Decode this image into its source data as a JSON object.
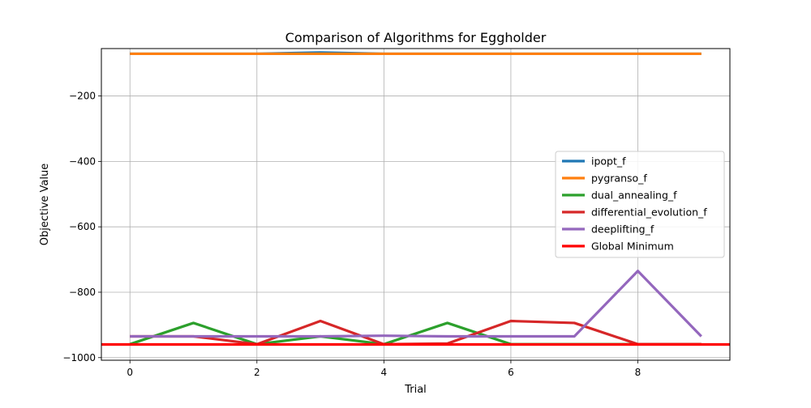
{
  "chart_data": {
    "type": "line",
    "title": "Comparison of Algorithms for Eggholder",
    "xlabel": "Trial",
    "ylabel": "Objective Value",
    "xlim": [
      -0.45,
      9.45
    ],
    "ylim": [
      -1008,
      -55
    ],
    "x_ticks": [
      0,
      2,
      4,
      6,
      8
    ],
    "x_tick_labels": [
      "0",
      "2",
      "4",
      "6",
      "8"
    ],
    "y_ticks": [
      -1000,
      -800,
      -600,
      -400,
      -200
    ],
    "y_tick_labels": [
      "−1000",
      "−800",
      "−600",
      "−400",
      "−200"
    ],
    "grid": true,
    "legend_position": "center-right",
    "x": [
      0,
      1,
      2,
      3,
      4,
      5,
      6,
      7,
      8,
      9
    ],
    "series": [
      {
        "name": "ipopt_f",
        "color": "#1f77b4",
        "values": [
          -71,
          -71,
          -71,
          -67,
          -71,
          -71,
          -71,
          -71,
          -71,
          -71
        ]
      },
      {
        "name": "pygranso_f",
        "color": "#ff7f0e",
        "values": [
          -71,
          -71,
          -71,
          -71,
          -71,
          -71,
          -71,
          -71,
          -71,
          -71
        ]
      },
      {
        "name": "dual_annealing_f",
        "color": "#2ca02c",
        "values": [
          -959,
          -894,
          -959,
          -935,
          -959,
          -894,
          -959,
          -959,
          -959,
          -959
        ]
      },
      {
        "name": "differential_evolution_f",
        "color": "#d62728",
        "values": [
          -935,
          -935,
          -959,
          -888,
          -959,
          -957,
          -888,
          -894,
          -959,
          -959
        ]
      },
      {
        "name": "deeplifting_f",
        "color": "#9467bd",
        "values": [
          -935,
          -935,
          -935,
          -935,
          -933,
          -935,
          -935,
          -935,
          -735,
          -935
        ]
      }
    ],
    "reference_line": {
      "name": "Global Minimum",
      "color": "#ff0000",
      "value": -959.64
    }
  }
}
